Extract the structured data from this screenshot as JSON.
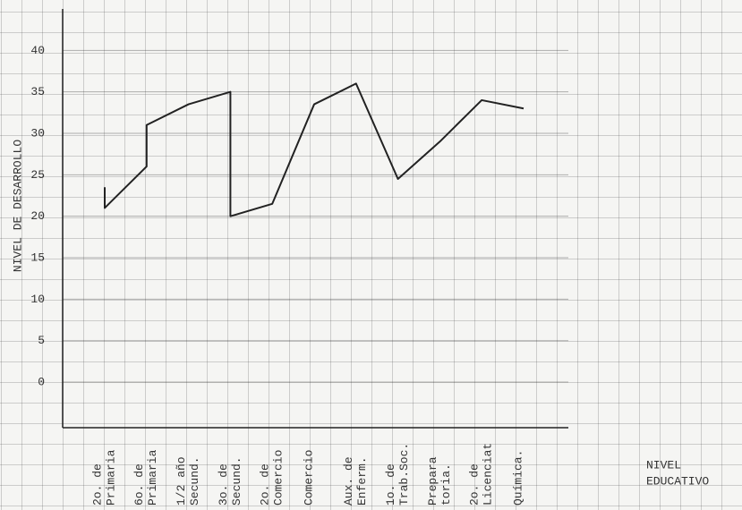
{
  "chart_data": {
    "type": "line",
    "y_label": "NIVEL DE DESARROLLO",
    "x_label": [
      "NIVEL",
      "EDUCATIVO"
    ],
    "categories": [
      [
        "2o. de",
        "Primaria"
      ],
      [
        "6o. de",
        "Primaria"
      ],
      [
        "1/2 año",
        "Secund."
      ],
      [
        "3o. de",
        "Secund."
      ],
      [
        "2o. de",
        "Comercio"
      ],
      [
        "Comercio"
      ],
      [
        "Aux. de",
        "Enferm."
      ],
      [
        "1o. de",
        "Trab.Soc."
      ],
      [
        "Prepara",
        "toria."
      ],
      [
        "2o. de",
        "Licenciat"
      ],
      [
        "Química."
      ]
    ],
    "values": [
      [
        23.5,
        21
      ],
      [
        26,
        31
      ],
      33.5,
      [
        35,
        20
      ],
      21.5,
      33.5,
      36,
      24.5,
      29,
      34,
      33
    ],
    "color": "#222222",
    "ylim": [
      -5.5,
      45
    ],
    "yticks": [
      0,
      5,
      10,
      15,
      20,
      25,
      30,
      35,
      40
    ],
    "grid": true
  }
}
